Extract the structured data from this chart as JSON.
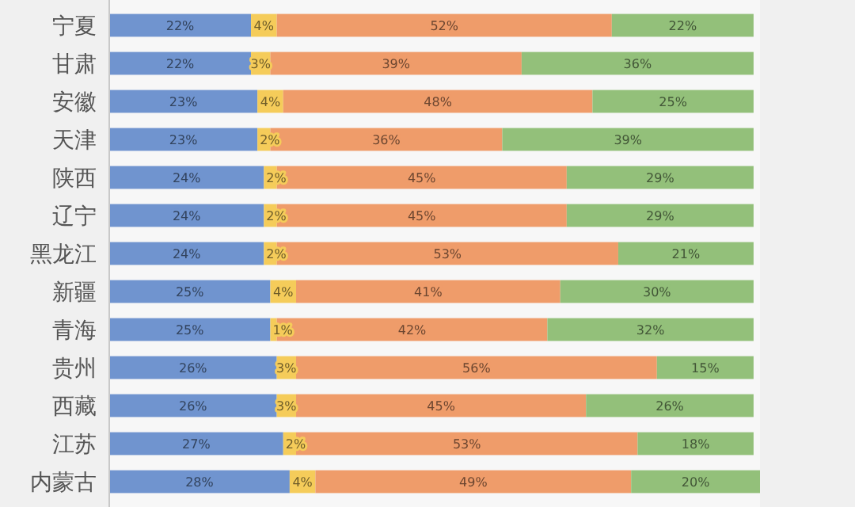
{
  "chart_data": {
    "type": "bar",
    "orientation": "horizontal",
    "stacked": true,
    "tick_labels": "y",
    "xlim": [
      0,
      101
    ],
    "categories": [
      "宁夏",
      "甘肃",
      "安徽",
      "天津",
      "陕西",
      "辽宁",
      "黑龙江",
      "新疆",
      "青海",
      "贵州",
      "西藏",
      "江苏",
      "内蒙古"
    ],
    "series": [
      {
        "color": "#7094cf",
        "values": [
          22,
          22,
          23,
          23,
          24,
          24,
          24,
          25,
          25,
          26,
          26,
          27,
          28
        ],
        "value_labels": [
          "22%",
          "22%",
          "23%",
          "23%",
          "24%",
          "24%",
          "24%",
          "25%",
          "25%",
          "26%",
          "26%",
          "27%",
          "28%"
        ]
      },
      {
        "color": "#f5cc5a",
        "values": [
          4,
          3,
          4,
          2,
          2,
          2,
          2,
          4,
          1,
          3,
          3,
          2,
          4
        ],
        "value_labels": [
          "4%",
          "3%",
          "4%",
          "2%",
          "2%",
          "2%",
          "2%",
          "4%",
          "1%",
          "3%",
          "3%",
          "2%",
          "4%"
        ]
      },
      {
        "color": "#ef9c6a",
        "values": [
          52,
          39,
          48,
          36,
          45,
          45,
          53,
          41,
          42,
          56,
          45,
          53,
          49
        ],
        "value_labels": [
          "52%",
          "39%",
          "48%",
          "36%",
          "45%",
          "45%",
          "53%",
          "41%",
          "42%",
          "56%",
          "45%",
          "53%",
          "49%"
        ]
      },
      {
        "color": "#93c07a",
        "values": [
          22,
          36,
          25,
          39,
          29,
          29,
          21,
          30,
          32,
          15,
          26,
          18,
          20
        ],
        "value_labels": [
          "22%",
          "36%",
          "25%",
          "39%",
          "29%",
          "29%",
          "21%",
          "30%",
          "32%",
          "15%",
          "26%",
          "18%",
          "20%"
        ]
      }
    ]
  }
}
